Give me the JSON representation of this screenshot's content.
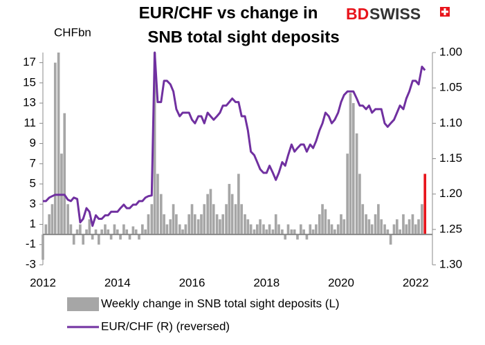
{
  "chart_data": {
    "type": "bar_line_dual",
    "title": [
      "EUR/CHF vs change in",
      "SNB total sight deposits"
    ],
    "brand": [
      "BD",
      "SWISS"
    ],
    "y_label": "CHFbn",
    "x": [
      2012.0,
      2012.08,
      2012.17,
      2012.25,
      2012.33,
      2012.42,
      2012.5,
      2012.58,
      2012.67,
      2012.75,
      2012.83,
      2012.92,
      2013.0,
      2013.08,
      2013.17,
      2013.25,
      2013.33,
      2013.42,
      2013.5,
      2013.58,
      2013.67,
      2013.75,
      2013.83,
      2013.92,
      2014.0,
      2014.08,
      2014.17,
      2014.25,
      2014.33,
      2014.42,
      2014.5,
      2014.58,
      2014.67,
      2014.75,
      2014.83,
      2014.92,
      2015.0,
      2015.08,
      2015.17,
      2015.25,
      2015.33,
      2015.42,
      2015.5,
      2015.58,
      2015.67,
      2015.75,
      2015.83,
      2015.92,
      2016.0,
      2016.08,
      2016.17,
      2016.25,
      2016.33,
      2016.42,
      2016.5,
      2016.58,
      2016.67,
      2016.75,
      2016.83,
      2016.92,
      2017.0,
      2017.08,
      2017.17,
      2017.25,
      2017.33,
      2017.42,
      2017.5,
      2017.58,
      2017.67,
      2017.75,
      2017.83,
      2017.92,
      2018.0,
      2018.08,
      2018.17,
      2018.25,
      2018.33,
      2018.42,
      2018.5,
      2018.58,
      2018.67,
      2018.75,
      2018.83,
      2018.92,
      2019.0,
      2019.08,
      2019.17,
      2019.25,
      2019.33,
      2019.42,
      2019.5,
      2019.58,
      2019.67,
      2019.75,
      2019.83,
      2019.92,
      2020.0,
      2020.08,
      2020.17,
      2020.25,
      2020.33,
      2020.42,
      2020.5,
      2020.58,
      2020.67,
      2020.75,
      2020.83,
      2020.92,
      2021.0,
      2021.08,
      2021.17,
      2021.25,
      2021.33,
      2021.42,
      2021.5,
      2021.58,
      2021.67,
      2021.75,
      2021.83,
      2021.92,
      2022.0,
      2022.08,
      2022.17,
      2022.25
    ],
    "series": [
      {
        "name": "Weekly change in SNB total sight deposits (L)",
        "color": "#a6a6a6",
        "color_last": "#e8141b",
        "axis": "y",
        "values": [
          -2.5,
          1,
          2,
          3,
          17,
          18,
          8,
          12,
          3,
          1,
          -1,
          0.5,
          1,
          -1,
          0.5,
          1.5,
          -0.5,
          0.5,
          -1,
          0.5,
          1,
          0.5,
          -0.5,
          1,
          0.5,
          -0.5,
          1,
          0.5,
          -0.5,
          0.8,
          0.5,
          -0.5,
          1,
          0.5,
          2,
          3,
          18,
          6,
          4,
          2,
          1,
          1.5,
          3,
          2,
          1,
          0.5,
          1,
          2,
          3,
          2,
          1.5,
          2,
          3,
          4,
          4.5,
          3,
          2,
          1.5,
          2,
          3,
          5,
          4,
          3,
          6,
          3,
          2,
          1.5,
          1,
          0.5,
          1,
          1.5,
          1,
          0.5,
          1,
          0.5,
          2,
          1,
          0.5,
          -0.5,
          1,
          0.5,
          0.5,
          -0.5,
          1,
          0.5,
          -0.5,
          1,
          0.5,
          1,
          2,
          3,
          2.5,
          1.5,
          1,
          0.5,
          1,
          2,
          1.5,
          8,
          14,
          13,
          10,
          6,
          3,
          2,
          1.5,
          1,
          2,
          3,
          1.5,
          1,
          0.5,
          -1,
          1,
          1.5,
          0.5,
          2,
          1,
          1.5,
          2,
          1,
          1.5,
          3,
          6
        ]
      },
      {
        "name": "EUR/CHF (R) (reversed)",
        "color": "#7030a0",
        "axis": "y2",
        "values": [
          1.21,
          1.21,
          1.205,
          1.203,
          1.201,
          1.201,
          1.201,
          1.201,
          1.208,
          1.21,
          1.205,
          1.207,
          1.24,
          1.235,
          1.22,
          1.225,
          1.245,
          1.23,
          1.235,
          1.235,
          1.23,
          1.23,
          1.225,
          1.225,
          1.225,
          1.22,
          1.215,
          1.22,
          1.22,
          1.215,
          1.215,
          1.21,
          1.21,
          1.205,
          1.203,
          1.202,
          1.0,
          1.07,
          1.07,
          1.04,
          1.04,
          1.045,
          1.055,
          1.08,
          1.09,
          1.085,
          1.085,
          1.085,
          1.095,
          1.1,
          1.09,
          1.09,
          1.1,
          1.085,
          1.09,
          1.095,
          1.09,
          1.085,
          1.075,
          1.075,
          1.07,
          1.065,
          1.07,
          1.07,
          1.09,
          1.09,
          1.11,
          1.14,
          1.145,
          1.155,
          1.165,
          1.17,
          1.17,
          1.16,
          1.17,
          1.18,
          1.17,
          1.155,
          1.16,
          1.145,
          1.13,
          1.14,
          1.135,
          1.13,
          1.13,
          1.14,
          1.13,
          1.135,
          1.125,
          1.11,
          1.1,
          1.085,
          1.09,
          1.1,
          1.095,
          1.085,
          1.07,
          1.06,
          1.055,
          1.055,
          1.055,
          1.065,
          1.075,
          1.075,
          1.08,
          1.075,
          1.085,
          1.08,
          1.08,
          1.08,
          1.1,
          1.105,
          1.1,
          1.095,
          1.085,
          1.075,
          1.08,
          1.065,
          1.055,
          1.04,
          1.04,
          1.045,
          1.02,
          1.025
        ]
      }
    ],
    "xlim": [
      2012,
      2022.45
    ],
    "xticks": [
      2012,
      2014,
      2016,
      2018,
      2020,
      2022
    ],
    "ylim": [
      -3,
      18
    ],
    "yticks": [
      -3,
      -1,
      1,
      3,
      5,
      7,
      9,
      11,
      13,
      15,
      17
    ],
    "y2lim": [
      1.0,
      1.3
    ],
    "y2_reversed": true,
    "y2ticks": [
      {
        "value": 1.0,
        "label": "1.00"
      },
      {
        "value": 1.05,
        "label": "1.05"
      },
      {
        "value": 1.1,
        "label": "1.10"
      },
      {
        "value": 1.15,
        "label": "1.15"
      },
      {
        "value": 1.2,
        "label": "1.20"
      },
      {
        "value": 1.25,
        "label": "1.25"
      },
      {
        "value": 1.3,
        "label": "1.30"
      }
    ]
  }
}
